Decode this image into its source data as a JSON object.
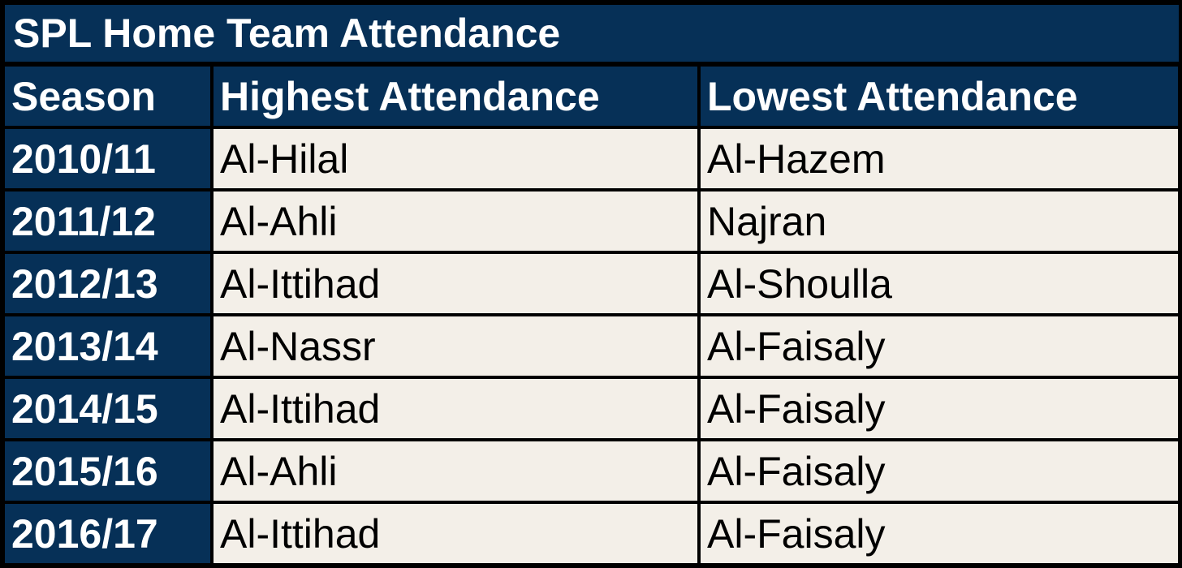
{
  "title": "SPL Home Team Attendance",
  "headers": {
    "season": "Season",
    "highest": "Highest Attendance",
    "lowest": "Lowest Attendance"
  },
  "rows": [
    {
      "season": "2010/11",
      "highest": "Al-Hilal",
      "lowest": "Al-Hazem"
    },
    {
      "season": "2011/12",
      "highest": "Al-Ahli",
      "lowest": "Najran"
    },
    {
      "season": "2012/13",
      "highest": "Al-Ittihad",
      "lowest": "Al-Shoulla"
    },
    {
      "season": "2013/14",
      "highest": "Al-Nassr",
      "lowest": "Al-Faisaly"
    },
    {
      "season": "2014/15",
      "highest": "Al-Ittihad",
      "lowest": "Al-Faisaly"
    },
    {
      "season": "2015/16",
      "highest": "Al-Ahli",
      "lowest": "Al-Faisaly"
    },
    {
      "season": "2016/17",
      "highest": "Al-Ittihad",
      "lowest": "Al-Faisaly"
    }
  ],
  "colors": {
    "header_bg": "#063057",
    "cell_bg": "#f3efe8",
    "border": "#000000"
  }
}
